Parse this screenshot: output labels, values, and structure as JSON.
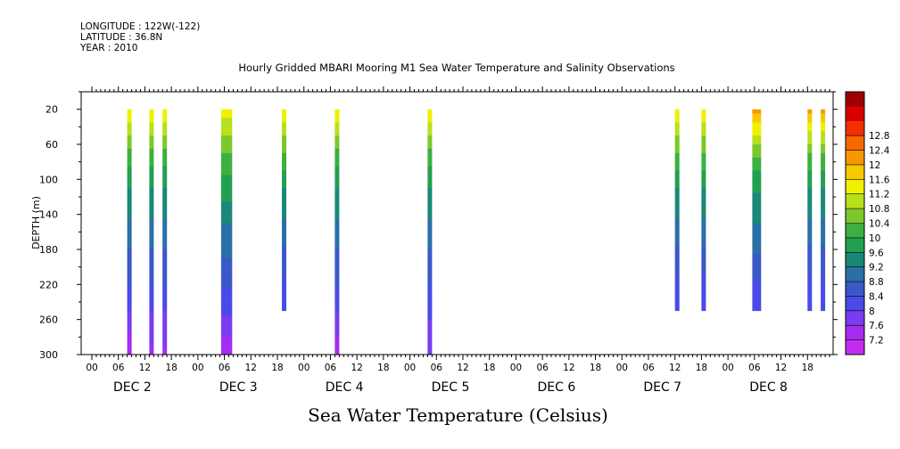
{
  "header": {
    "longitude": "LONGITUDE : 122W(-122)",
    "latitude": "LATITUDE : 36.8N",
    "year": "YEAR : 2010"
  },
  "chart_data": {
    "type": "heatmap",
    "title": "Hourly Gridded MBARI Mooring M1 Sea Water Temperature and Salinity Observations",
    "xlabel": "",
    "ylabel": "DEPTH (m)",
    "colorbar_label": "Sea Water Temperature (Celsius)",
    "x_range_hours": [
      0,
      168
    ],
    "y_range_m": [
      300,
      0
    ],
    "y_ticks": [
      20,
      60,
      100,
      140,
      180,
      220,
      260,
      300
    ],
    "x_hour_ticks": [
      "00",
      "06",
      "12",
      "18",
      "00",
      "06",
      "12",
      "18",
      "00",
      "06",
      "12",
      "18",
      "00",
      "06",
      "12",
      "18",
      "00",
      "06",
      "12",
      "18",
      "00",
      "06",
      "12",
      "18",
      "00",
      "06",
      "12",
      "18"
    ],
    "day_labels": [
      "DEC  2",
      "DEC  3",
      "DEC  4",
      "DEC  5",
      "DEC  6",
      "DEC  7",
      "DEC  8"
    ],
    "colorbar_levels": [
      7.2,
      7.6,
      8,
      8.4,
      8.8,
      9.2,
      9.6,
      10,
      10.4,
      10.8,
      11.2,
      11.6,
      12,
      12.4,
      12.8
    ],
    "colorbar_colors": [
      "#c22cf0",
      "#a52cf0",
      "#7a3cf0",
      "#4a4ae8",
      "#3a58c8",
      "#2a70a8",
      "#1a8878",
      "#22a050",
      "#3cb040",
      "#7cc82c",
      "#b8e01c",
      "#f0f000",
      "#f8c800",
      "#f89800",
      "#f86800",
      "#f03000",
      "#d80000",
      "#a00000"
    ],
    "x_unit": "hours since 00Z DEC 2",
    "columns": [
      {
        "hour": 8.5,
        "width_h": 1.0,
        "depth_max": 300,
        "profile": [
          [
            20,
            11.6
          ],
          [
            40,
            11.0
          ],
          [
            70,
            10.2
          ],
          [
            110,
            9.6
          ],
          [
            160,
            9.0
          ],
          [
            210,
            8.5
          ],
          [
            250,
            8.0
          ],
          [
            290,
            7.4
          ]
        ]
      },
      {
        "hour": 13.5,
        "width_h": 1.0,
        "depth_max": 300,
        "profile": [
          [
            20,
            11.6
          ],
          [
            40,
            11.0
          ],
          [
            70,
            10.2
          ],
          [
            110,
            9.6
          ],
          [
            160,
            9.0
          ],
          [
            210,
            8.5
          ],
          [
            250,
            8.0
          ],
          [
            290,
            7.6
          ]
        ]
      },
      {
        "hour": 16.5,
        "width_h": 1.0,
        "depth_max": 300,
        "profile": [
          [
            20,
            11.6
          ],
          [
            40,
            11.0
          ],
          [
            70,
            10.2
          ],
          [
            110,
            9.6
          ],
          [
            160,
            9.0
          ],
          [
            210,
            8.5
          ],
          [
            250,
            8.0
          ],
          [
            290,
            7.6
          ]
        ]
      },
      {
        "hour": 30.5,
        "width_h": 2.5,
        "depth_max": 300,
        "profile": [
          [
            20,
            11.5
          ],
          [
            40,
            11.0
          ],
          [
            70,
            10.4
          ],
          [
            110,
            9.8
          ],
          [
            150,
            9.2
          ],
          [
            200,
            8.7
          ],
          [
            240,
            8.2
          ],
          [
            280,
            7.6
          ],
          [
            300,
            7.3
          ]
        ]
      },
      {
        "hour": 43.5,
        "width_h": 1.0,
        "depth_max": 250,
        "profile": [
          [
            20,
            11.6
          ],
          [
            40,
            11.0
          ],
          [
            70,
            10.4
          ],
          [
            110,
            9.6
          ],
          [
            160,
            9.0
          ],
          [
            210,
            8.4
          ],
          [
            250,
            8.0
          ]
        ]
      },
      {
        "hour": 55.5,
        "width_h": 1.0,
        "depth_max": 300,
        "profile": [
          [
            20,
            11.6
          ],
          [
            40,
            11.0
          ],
          [
            70,
            10.2
          ],
          [
            110,
            9.6
          ],
          [
            160,
            9.0
          ],
          [
            210,
            8.5
          ],
          [
            250,
            8.0
          ],
          [
            290,
            7.5
          ]
        ]
      },
      {
        "hour": 76.5,
        "width_h": 1.0,
        "depth_max": 300,
        "profile": [
          [
            20,
            11.6
          ],
          [
            40,
            11.0
          ],
          [
            70,
            10.2
          ],
          [
            110,
            9.6
          ],
          [
            160,
            9.0
          ],
          [
            210,
            8.5
          ],
          [
            260,
            8.0
          ],
          [
            300,
            7.9
          ]
        ]
      },
      {
        "hour": 132.5,
        "width_h": 1.0,
        "depth_max": 250,
        "profile": [
          [
            20,
            11.6
          ],
          [
            40,
            11.0
          ],
          [
            70,
            10.4
          ],
          [
            110,
            9.6
          ],
          [
            160,
            9.0
          ],
          [
            210,
            8.4
          ],
          [
            250,
            8.0
          ]
        ]
      },
      {
        "hour": 138.5,
        "width_h": 1.0,
        "depth_max": 250,
        "profile": [
          [
            20,
            11.6
          ],
          [
            40,
            11.0
          ],
          [
            70,
            10.4
          ],
          [
            110,
            9.6
          ],
          [
            160,
            9.0
          ],
          [
            210,
            8.4
          ],
          [
            250,
            8.0
          ]
        ]
      },
      {
        "hour": 150.5,
        "width_h": 2.0,
        "depth_max": 250,
        "profile": [
          [
            20,
            12.2
          ],
          [
            35,
            11.6
          ],
          [
            60,
            10.8
          ],
          [
            100,
            9.8
          ],
          [
            150,
            9.2
          ],
          [
            200,
            8.6
          ],
          [
            250,
            8.0
          ]
        ]
      },
      {
        "hour": 162.5,
        "width_h": 1.0,
        "depth_max": 250,
        "profile": [
          [
            20,
            12.2
          ],
          [
            40,
            11.4
          ],
          [
            70,
            10.4
          ],
          [
            110,
            9.6
          ],
          [
            160,
            9.0
          ],
          [
            210,
            8.4
          ],
          [
            250,
            8.0
          ]
        ]
      },
      {
        "hour": 165.5,
        "width_h": 1.0,
        "depth_max": 250,
        "profile": [
          [
            20,
            12.2
          ],
          [
            40,
            11.4
          ],
          [
            70,
            10.4
          ],
          [
            110,
            9.6
          ],
          [
            160,
            9.0
          ],
          [
            210,
            8.4
          ],
          [
            250,
            8.0
          ]
        ]
      }
    ]
  }
}
